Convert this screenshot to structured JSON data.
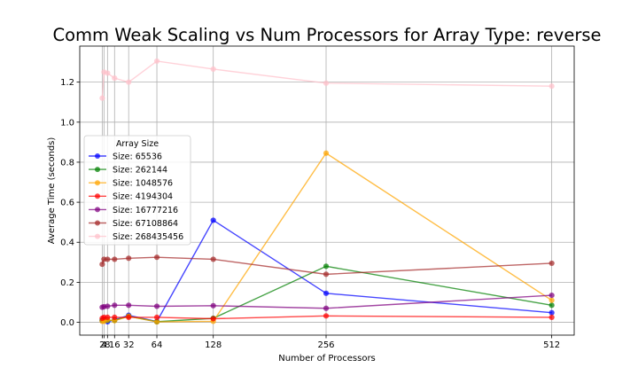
{
  "chart_data": {
    "type": "line",
    "title": "Comm Weak Scaling vs Num Processors for Array Type: reverse",
    "xlabel": "Number of Processors",
    "ylabel": "Average Time (seconds)",
    "x": [
      2,
      4,
      8,
      16,
      32,
      64,
      128,
      256,
      512
    ],
    "xticks": [
      2,
      4,
      8,
      16,
      32,
      64,
      128,
      256,
      512
    ],
    "xtick_labels": [
      "2",
      "4",
      "8",
      "16",
      "32",
      "64",
      "128",
      "256",
      "512"
    ],
    "xlim": [
      -23.5,
      537.5
    ],
    "yticks": [
      0.0,
      0.2,
      0.4,
      0.6,
      0.8,
      1.0,
      1.2
    ],
    "ytick_labels": [
      "0.0",
      "0.2",
      "0.4",
      "0.6",
      "0.8",
      "1.0",
      "1.2"
    ],
    "ylim": [
      -0.064,
      1.38
    ],
    "grid": true,
    "legend": {
      "title": "Array Size",
      "placement": "center-left"
    },
    "series": [
      {
        "name": "Size: 65536",
        "color": "#0000ff",
        "values": [
          0.01,
          0.015,
          0.003,
          0.012,
          0.035,
          0.004,
          0.51,
          0.145,
          0.048
        ]
      },
      {
        "name": "Size: 262144",
        "color": "#008000",
        "values": [
          0.01,
          0.01,
          0.01,
          0.01,
          0.03,
          0.003,
          0.02,
          0.28,
          0.085
        ]
      },
      {
        "name": "Size: 1048576",
        "color": "#ffa500",
        "values": [
          0.005,
          0.005,
          0.012,
          0.008,
          0.03,
          0.002,
          0.005,
          0.845,
          0.11
        ]
      },
      {
        "name": "Size: 4194304",
        "color": "#ff0000",
        "values": [
          0.02,
          0.025,
          0.025,
          0.025,
          0.025,
          0.025,
          0.018,
          0.032,
          0.025
        ]
      },
      {
        "name": "Size: 16777216",
        "color": "#800080",
        "values": [
          0.075,
          0.078,
          0.08,
          0.085,
          0.085,
          0.08,
          0.083,
          0.07,
          0.135
        ]
      },
      {
        "name": "Size: 67108864",
        "color": "#a52a2a",
        "values": [
          0.29,
          0.315,
          0.315,
          0.315,
          0.32,
          0.325,
          0.315,
          0.24,
          0.295
        ]
      },
      {
        "name": "Size: 268435456",
        "color": "#ffc0cb",
        "values": [
          1.12,
          1.25,
          1.245,
          1.22,
          1.2,
          1.305,
          1.265,
          1.195,
          1.18
        ]
      }
    ]
  }
}
